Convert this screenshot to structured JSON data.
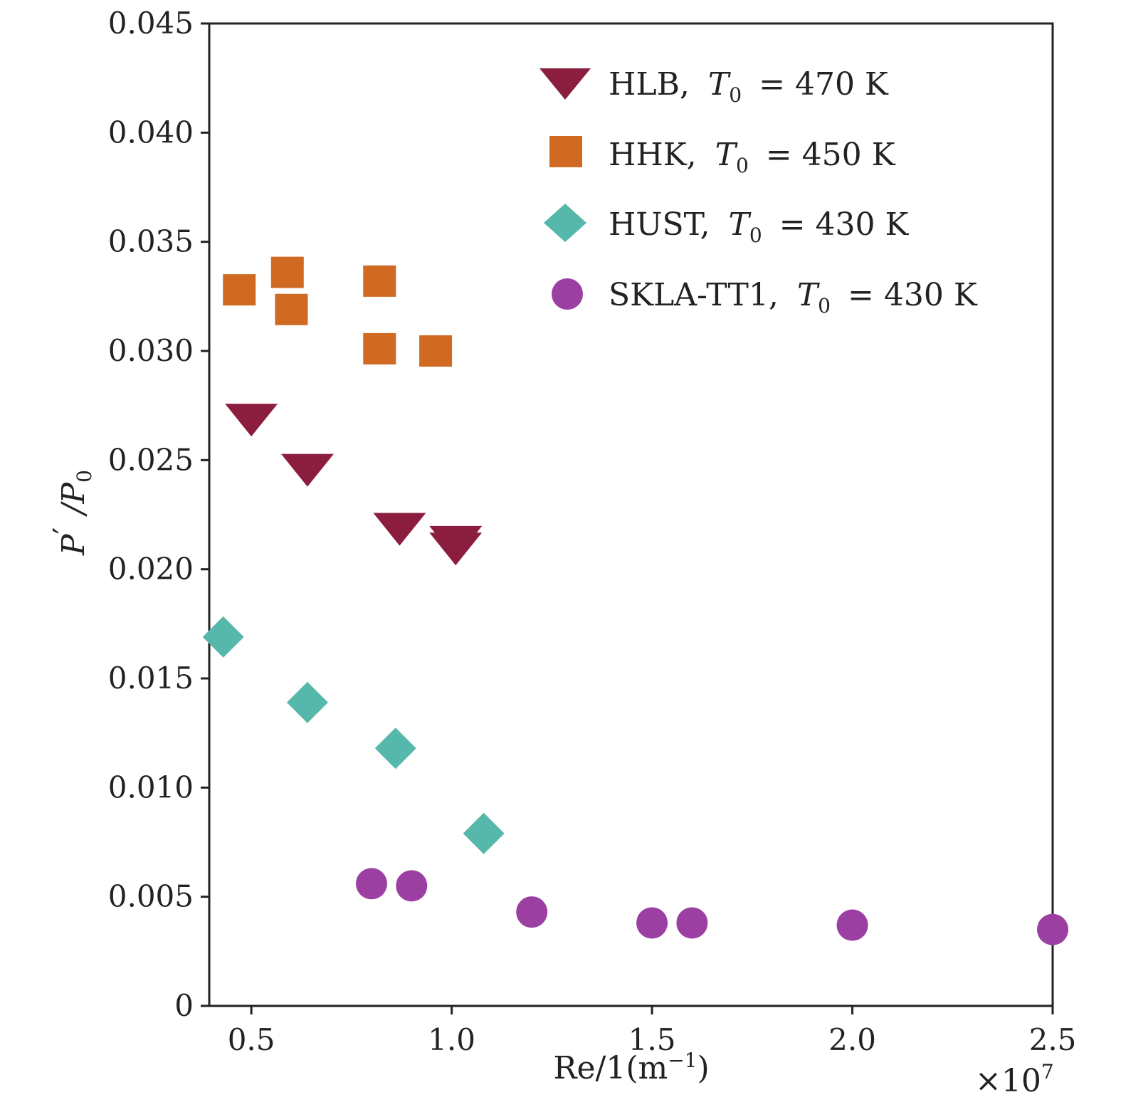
{
  "chart_data": {
    "type": "scatter",
    "xlabel": "Re/1(m",
    "xlabel_sup": "−1",
    "xlabel_end": ")",
    "x_multiplier": "×10",
    "x_multiplier_exp": "7",
    "ylabel_p": "P",
    "ylabel_prime": "′",
    "ylabel_slash": "/P",
    "ylabel_sub": "0",
    "xlim": [
      0.395,
      2.5
    ],
    "ylim": [
      0,
      0.045
    ],
    "x_ticks": [
      0.5,
      1.0,
      1.5,
      2.0,
      2.5
    ],
    "x_tick_labels": [
      "0.5",
      "1.0",
      "1.5",
      "2.0",
      "2.5"
    ],
    "y_ticks": [
      0,
      0.005,
      0.01,
      0.015,
      0.02,
      0.025,
      0.03,
      0.035,
      0.04,
      0.045
    ],
    "y_tick_labels": [
      "0",
      "0.005",
      "0.010",
      "0.015",
      "0.020",
      "0.025",
      "0.030",
      "0.035",
      "0.040",
      "0.045"
    ],
    "legend_position": "top-right",
    "series": [
      {
        "name": "HLB",
        "label": "HLB,",
        "t_sym": "T",
        "t_sub": "0",
        "t_val": "= 470 K",
        "marker": "triangle-down",
        "color": "#8B1E3F",
        "points": [
          [
            0.5,
            0.0268
          ],
          [
            0.64,
            0.0245
          ],
          [
            0.87,
            0.0218
          ],
          [
            1.01,
            0.0212
          ],
          [
            1.01,
            0.0209
          ]
        ]
      },
      {
        "name": "HHK",
        "label": "HHK,",
        "t_sym": "T",
        "t_sub": "0",
        "t_val": "= 450 K",
        "marker": "square",
        "color": "#D06A22",
        "points": [
          [
            0.47,
            0.0328
          ],
          [
            0.59,
            0.0336
          ],
          [
            0.6,
            0.0319
          ],
          [
            0.82,
            0.0332
          ],
          [
            0.82,
            0.0301
          ],
          [
            0.96,
            0.03
          ]
        ]
      },
      {
        "name": "HUST",
        "label": "HUST,",
        "t_sym": "T",
        "t_sub": "0",
        "t_val": "= 430 K",
        "marker": "diamond",
        "color": "#55B8AB",
        "points": [
          [
            0.43,
            0.0169
          ],
          [
            0.64,
            0.0139
          ],
          [
            0.86,
            0.0118
          ],
          [
            1.08,
            0.0079
          ]
        ]
      },
      {
        "name": "SKLA-TT1",
        "label": "SKLA-TT1,",
        "t_sym": "T",
        "t_sub": "0",
        "t_val": "= 430 K",
        "marker": "circle",
        "color": "#9B3FA3",
        "points": [
          [
            0.8,
            0.0056
          ],
          [
            0.9,
            0.0055
          ],
          [
            1.2,
            0.0043
          ],
          [
            1.5,
            0.0038
          ],
          [
            1.6,
            0.0038
          ],
          [
            2.0,
            0.0037
          ],
          [
            2.5,
            0.0035
          ]
        ]
      }
    ]
  }
}
